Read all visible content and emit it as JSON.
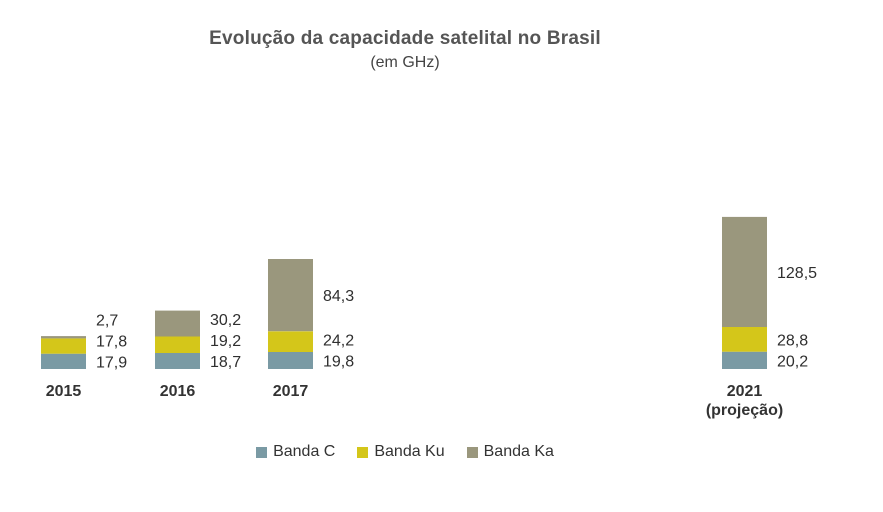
{
  "chart_data": {
    "type": "bar",
    "stacked": true,
    "title": "Evolução da capacidade satelital no Brasil",
    "subtitle": "(em GHz)",
    "categories": [
      [
        "2015"
      ],
      [
        "2016"
      ],
      [
        "2017"
      ],
      [
        "2021",
        "(projeção)"
      ]
    ],
    "series": [
      {
        "name": "Banda C",
        "color": "#7a9aa4",
        "values": [
          17.9,
          18.7,
          19.8,
          20.2
        ],
        "labels": [
          "17,9",
          "18,7",
          "19,8",
          "20,2"
        ]
      },
      {
        "name": "Banda Ku",
        "color": "#d4c61a",
        "values": [
          17.8,
          19.2,
          24.2,
          28.8
        ],
        "labels": [
          "17,8",
          "19,2",
          "24,2",
          "28,8"
        ]
      },
      {
        "name": "Banda Ka",
        "color": "#9a977d",
        "values": [
          2.7,
          30.2,
          84.3,
          128.5
        ],
        "labels": [
          "2,7",
          "30,2",
          "84,3",
          "128,5"
        ]
      }
    ],
    "legend_position": "bottom",
    "grid": false
  }
}
